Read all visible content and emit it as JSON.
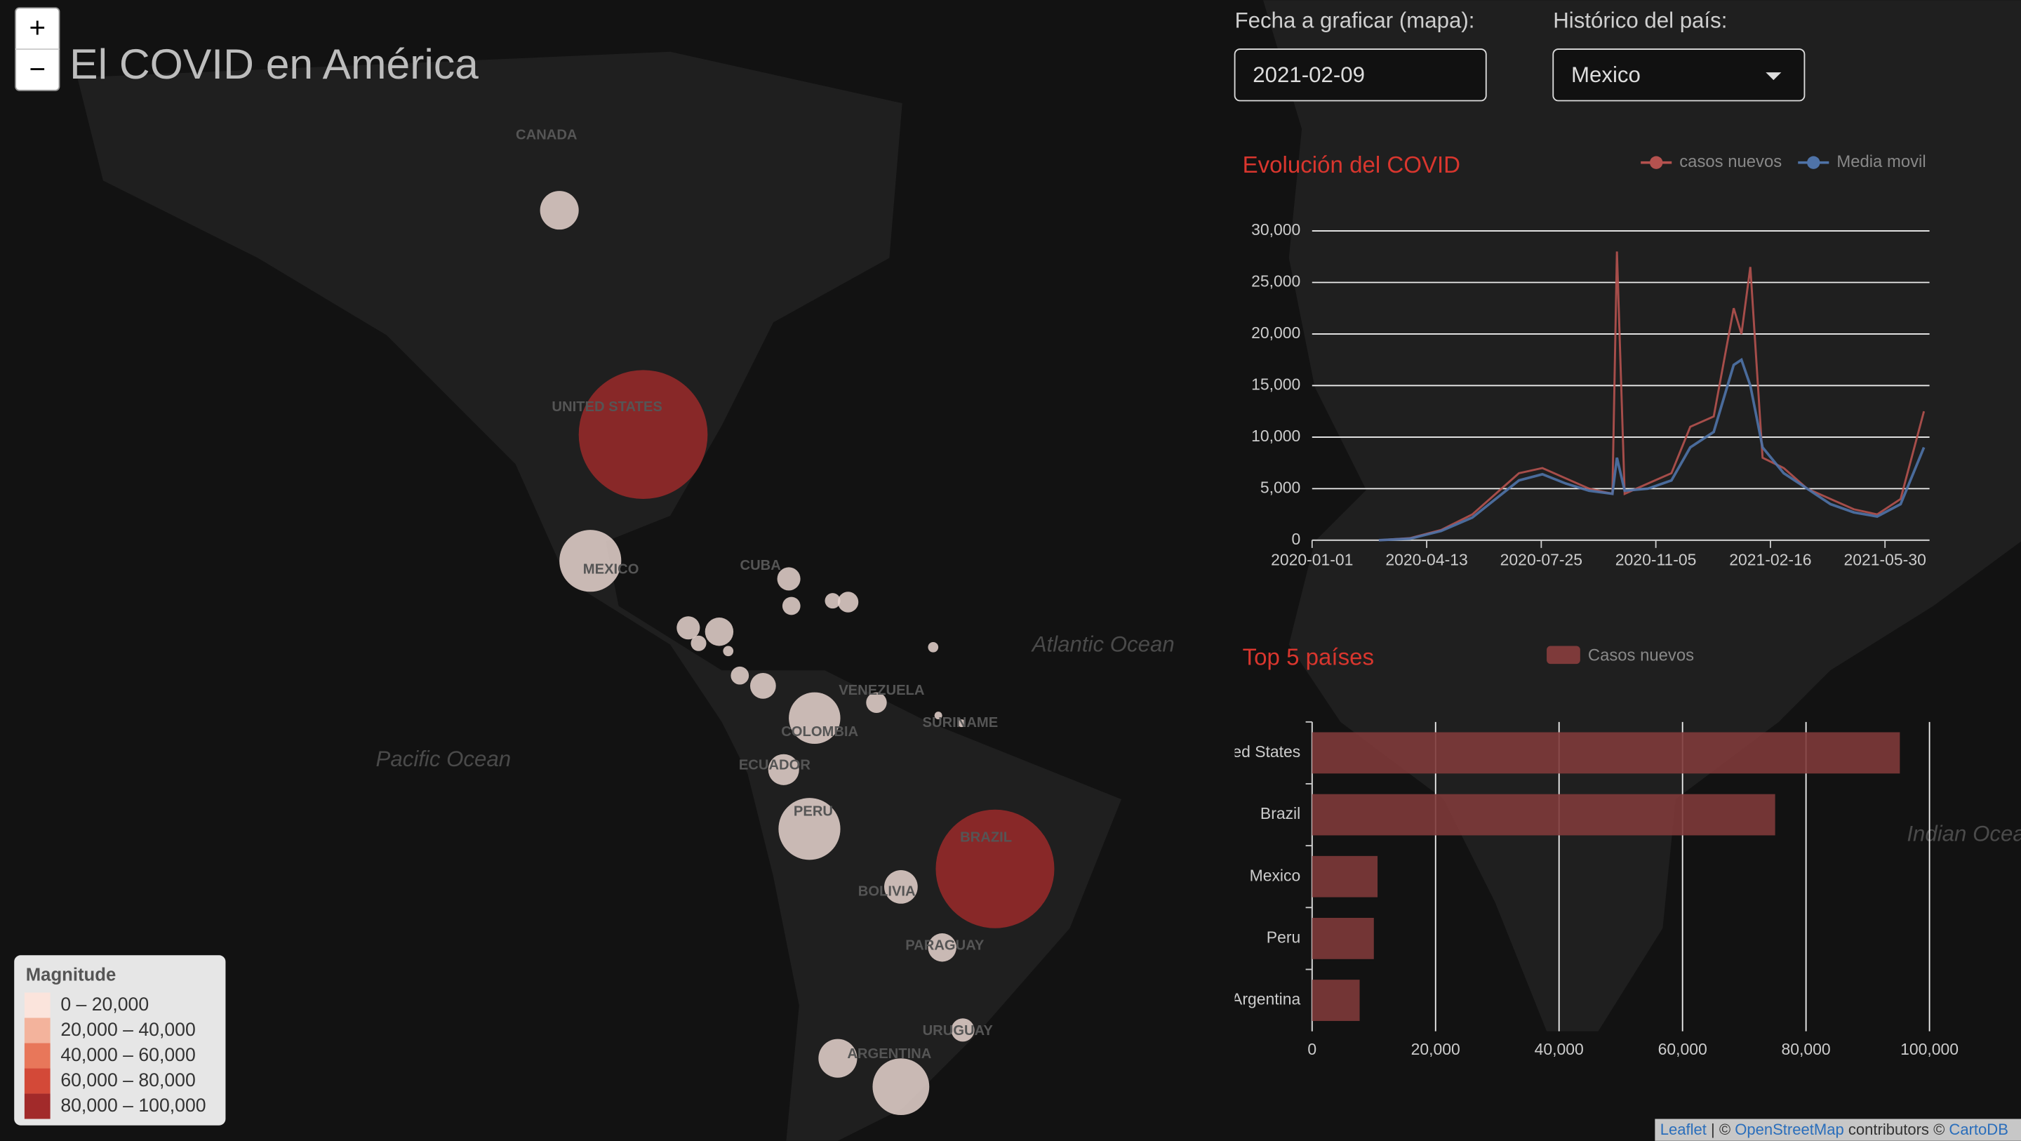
{
  "header": {
    "title": "El COVID en América"
  },
  "zoom": {
    "in": "+",
    "out": "−"
  },
  "controls": {
    "date": {
      "label": "Fecha a graficar (mapa):",
      "value": "2021-02-09"
    },
    "country": {
      "label": "Histórico del país:",
      "value": "Mexico"
    }
  },
  "map": {
    "labels": [
      "CANADA",
      "UNITED STATES",
      "MEXICO",
      "CUBA",
      "VENEZUELA",
      "COLOMBIA",
      "ECUADOR",
      "PERU",
      "BRAZIL",
      "BOLIVIA",
      "PARAGUAY",
      "ARGENTINA",
      "URUGUAY",
      "SURINAME",
      "Pacific Ocean",
      "Atlantic Ocean",
      "Indian Ocean"
    ],
    "legend": {
      "title": "Magnitude",
      "items": [
        {
          "label": "0 – 20,000",
          "color": "#fbe4dc"
        },
        {
          "label": "20,000 – 40,000",
          "color": "#f3b39c"
        },
        {
          "label": "40,000 – 60,000",
          "color": "#e8775a"
        },
        {
          "label": "60,000 – 80,000",
          "color": "#d34938"
        },
        {
          "label": "80,000 – 100,000",
          "color": "#a22a2a"
        }
      ]
    },
    "attribution": [
      "Leaflet",
      " | © ",
      "OpenStreetMap",
      " contributors © ",
      "CartoDB"
    ]
  },
  "chart_data": [
    {
      "type": "line",
      "title": "Evolución del COVID",
      "x": [
        "2020-03-01",
        "2020-03-29",
        "2020-04-26",
        "2020-05-24",
        "2020-06-14",
        "2020-07-05",
        "2020-07-26",
        "2020-08-16",
        "2020-09-06",
        "2020-09-27",
        "2020-10-01",
        "2020-10-08",
        "2020-10-29",
        "2020-11-19",
        "2020-12-06",
        "2020-12-27",
        "2021-01-14",
        "2021-01-21",
        "2021-01-29",
        "2021-02-09",
        "2021-02-28",
        "2021-03-21",
        "2021-04-11",
        "2021-05-02",
        "2021-05-23",
        "2021-06-13",
        "2021-07-04"
      ],
      "series": [
        {
          "name": "casos nuevos",
          "color": "#b5524f",
          "values": [
            0,
            200,
            1000,
            2500,
            4500,
            6500,
            7000,
            6000,
            5000,
            4500,
            28000,
            4500,
            5500,
            6500,
            11000,
            12000,
            22500,
            20000,
            26500,
            8000,
            7000,
            5000,
            4000,
            3000,
            2500,
            4000,
            12500
          ]
        },
        {
          "name": "Media movil",
          "color": "#4f73a8",
          "values": [
            0,
            150,
            900,
            2200,
            4000,
            5800,
            6400,
            5500,
            4800,
            4500,
            8000,
            4800,
            5000,
            5800,
            9000,
            10500,
            17000,
            17500,
            15000,
            9000,
            6500,
            5000,
            3500,
            2700,
            2300,
            3500,
            9000
          ]
        }
      ],
      "xlim": [
        "2020-01-01",
        "2021-07-09"
      ],
      "xticks": [
        "2020-01-01",
        "2020-04-13",
        "2020-07-25",
        "2020-11-05",
        "2021-02-16",
        "2021-05-30"
      ],
      "ylim": [
        0,
        30000
      ],
      "yticks": [
        0,
        {
          "value": 5000,
          "label": "5,000"
        },
        {
          "value": 10000,
          "label": "10,000"
        },
        {
          "value": 15000,
          "label": "15,000"
        },
        {
          "value": 20000,
          "label": "20,000"
        },
        {
          "value": 25000,
          "label": "25,000"
        },
        {
          "value": 30000,
          "label": "30,000"
        }
      ],
      "grid": true,
      "legend": "top-right"
    },
    {
      "type": "bar",
      "orientation": "horizontal",
      "title": "Top 5 países",
      "categories": [
        "United States",
        "Brazil",
        "Mexico",
        "Peru",
        "Argentina"
      ],
      "series": [
        {
          "name": "Casos nuevos",
          "color": "#7e3a3a",
          "values": [
            95200,
            75000,
            10600,
            10000,
            7700
          ]
        }
      ],
      "xlim": [
        0,
        100000
      ],
      "xticks": [
        0,
        {
          "value": 20000,
          "label": "20,000"
        },
        {
          "value": 40000,
          "label": "40,000"
        },
        {
          "value": 60000,
          "label": "60,000"
        },
        {
          "value": 80000,
          "label": "80,000"
        },
        {
          "value": 100000,
          "label": "100,000"
        }
      ],
      "grid": true,
      "legend": "top"
    }
  ]
}
